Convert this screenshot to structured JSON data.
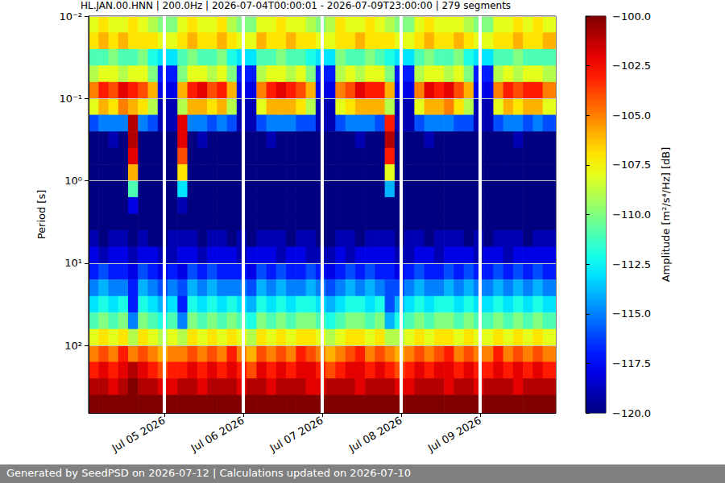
{
  "chart_data": {
    "type": "heatmap",
    "title": "HL.JAN.00.HNN | 200.0Hz | 2026-07-04T00:00:01 - 2026-07-09T23:00:00 | 279 segments",
    "ylabel": "Period [s]",
    "footer": "Generated by SeedPSD on 2026-07-12 | Calculations updated on 2026-07-10",
    "log": "y",
    "grid": true,
    "xlim": [
      "2026-07-04T01:00",
      "2026-07-09T23:00"
    ],
    "xticks": [
      {
        "value": "2026-07-05T00:00",
        "label": "Jul 05 2026"
      },
      {
        "value": "2026-07-06T00:00",
        "label": "Jul 06 2026"
      },
      {
        "value": "2026-07-07T00:00",
        "label": "Jul 07 2026"
      },
      {
        "value": "2026-07-08T00:00",
        "label": "Jul 08 2026"
      },
      {
        "value": "2026-07-09T00:00",
        "label": "Jul 09 2026"
      }
    ],
    "ylim": [
      0.01,
      660
    ],
    "yticks": [
      {
        "value": 0.01,
        "label": "10⁻²"
      },
      {
        "value": 0.1,
        "label": "10⁻¹"
      },
      {
        "value": 1,
        "label": "10⁰"
      },
      {
        "value": 10,
        "label": "10¹"
      },
      {
        "value": 100,
        "label": "10²"
      }
    ],
    "x": [
      "2026-07-04T01:00",
      "2026-07-04T04:00",
      "2026-07-04T07:00",
      "2026-07-04T10:00",
      "2026-07-04T13:00",
      "2026-07-04T16:00",
      "2026-07-04T19:00",
      "2026-07-04T22:00",
      "2026-07-05T01:00",
      "2026-07-05T04:00",
      "2026-07-05T07:00",
      "2026-07-05T10:00",
      "2026-07-05T13:00",
      "2026-07-05T16:00",
      "2026-07-05T19:00",
      "2026-07-05T22:00",
      "2026-07-06T01:00",
      "2026-07-06T04:00",
      "2026-07-06T07:00",
      "2026-07-06T10:00",
      "2026-07-06T13:00",
      "2026-07-06T16:00",
      "2026-07-06T19:00",
      "2026-07-06T22:00",
      "2026-07-07T01:00",
      "2026-07-07T04:00",
      "2026-07-07T07:00",
      "2026-07-07T10:00",
      "2026-07-07T13:00",
      "2026-07-07T16:00",
      "2026-07-07T19:00",
      "2026-07-07T22:00",
      "2026-07-08T01:00",
      "2026-07-08T04:00",
      "2026-07-08T07:00",
      "2026-07-08T10:00",
      "2026-07-08T13:00",
      "2026-07-08T16:00",
      "2026-07-08T19:00",
      "2026-07-08T22:00",
      "2026-07-09T01:00",
      "2026-07-09T04:00",
      "2026-07-09T07:00",
      "2026-07-09T10:00",
      "2026-07-09T13:00",
      "2026-07-09T16:00",
      "2026-07-09T19:00"
    ],
    "period_edges": [
      0.01,
      0.0158,
      0.0251,
      0.0398,
      0.0631,
      0.1,
      0.158,
      0.251,
      0.398,
      0.631,
      1,
      1.58,
      2.51,
      3.98,
      6.31,
      10,
      15.8,
      25.1,
      39.8,
      63.1,
      100,
      158,
      251,
      398,
      660
    ],
    "cells": [
      [
        -108,
        -107,
        -108,
        -108,
        -107,
        -108,
        -109,
        -110,
        -110,
        -108,
        -107,
        -108,
        -108,
        -107,
        -109,
        -110,
        -110,
        -108,
        -108,
        -107,
        -108,
        -108,
        -109,
        -110,
        -109,
        -107,
        -108,
        -108,
        -107,
        -108,
        -109,
        -110,
        -110,
        -108,
        -107,
        -108,
        -108,
        -108,
        -109,
        -110,
        -110,
        -108,
        -108,
        -107,
        -108,
        -107,
        -108
      ],
      [
        -107,
        -106,
        -107,
        -106,
        -107,
        -107,
        -107,
        -108,
        -108,
        -107,
        -106,
        -107,
        -107,
        -106,
        -107,
        -108,
        -108,
        -106,
        -107,
        -107,
        -106,
        -107,
        -107,
        -108,
        -108,
        -107,
        -107,
        -106,
        -107,
        -107,
        -107,
        -108,
        -108,
        -107,
        -106,
        -107,
        -107,
        -106,
        -107,
        -108,
        -108,
        -107,
        -107,
        -106,
        -107,
        -107,
        -106
      ],
      [
        -111,
        -111,
        -110,
        -111,
        -111,
        -110,
        -112,
        -113,
        -113,
        -111,
        -110,
        -111,
        -111,
        -110,
        -112,
        -113,
        -113,
        -111,
        -111,
        -110,
        -111,
        -111,
        -112,
        -113,
        -113,
        -110,
        -111,
        -111,
        -110,
        -111,
        -112,
        -113,
        -113,
        -111,
        -110,
        -111,
        -111,
        -110,
        -112,
        -113,
        -113,
        -111,
        -111,
        -110,
        -111,
        -111,
        -111
      ],
      [
        -109,
        -108,
        -108,
        -109,
        -108,
        -108,
        -110,
        -117,
        -117,
        -110,
        -108,
        -108,
        -109,
        -108,
        -110,
        -117,
        -117,
        -109,
        -108,
        -108,
        -109,
        -108,
        -110,
        -117,
        -117,
        -109,
        -108,
        -109,
        -108,
        -108,
        -110,
        -117,
        -117,
        -109,
        -108,
        -108,
        -109,
        -108,
        -110,
        -117,
        -117,
        -109,
        -108,
        -109,
        -108,
        -108,
        -109
      ],
      [
        -105,
        -103,
        -104,
        -102,
        -103,
        -104,
        -106,
        -118,
        -118,
        -106,
        -103,
        -102,
        -104,
        -103,
        -106,
        -118,
        -118,
        -105,
        -103,
        -102,
        -103,
        -104,
        -106,
        -118,
        -118,
        -105,
        -104,
        -102,
        -103,
        -103,
        -106,
        -118,
        -118,
        -105,
        -102,
        -103,
        -102,
        -104,
        -106,
        -118,
        -118,
        -105,
        -103,
        -104,
        -103,
        -103,
        -105
      ],
      [
        -108,
        -106,
        -107,
        -105,
        -106,
        -107,
        -109,
        -119,
        -119,
        -109,
        -106,
        -106,
        -107,
        -106,
        -109,
        -119,
        -119,
        -108,
        -106,
        -106,
        -106,
        -107,
        -109,
        -119,
        -119,
        -108,
        -107,
        -106,
        -106,
        -106,
        -109,
        -119,
        -119,
        -108,
        -106,
        -106,
        -105,
        -107,
        -109,
        -119,
        -119,
        -108,
        -106,
        -107,
        -106,
        -106,
        -108
      ],
      [
        -116,
        -115,
        -115,
        -115,
        -101,
        -115,
        -116,
        -119,
        -119,
        -102,
        -115,
        -115,
        -116,
        -115,
        -116,
        -119,
        -119,
        -116,
        -115,
        -115,
        -115,
        -116,
        -116,
        -119,
        -119,
        -116,
        -115,
        -115,
        -115,
        -116,
        -103,
        -119,
        -119,
        -116,
        -115,
        -115,
        -115,
        -116,
        -116,
        -119,
        -119,
        -116,
        -115,
        -115,
        -116,
        -115,
        -116
      ],
      [
        -120,
        -120,
        -119,
        -120,
        -101,
        -120,
        -120,
        -120,
        -120,
        -102,
        -120,
        -119,
        -120,
        -120,
        -120,
        -120,
        -120,
        -120,
        -119,
        -120,
        -120,
        -120,
        -120,
        -120,
        -120,
        -120,
        -120,
        -119,
        -120,
        -120,
        -101,
        -120,
        -120,
        -120,
        -119,
        -120,
        -120,
        -120,
        -120,
        -120,
        -120,
        -120,
        -120,
        -119,
        -120,
        -120,
        -120
      ],
      [
        -120,
        -120,
        -120,
        -120,
        -102,
        -120,
        -120,
        -120,
        -120,
        -104,
        -120,
        -120,
        -120,
        -120,
        -120,
        -120,
        -120,
        -120,
        -120,
        -120,
        -120,
        -120,
        -120,
        -120,
        -120,
        -120,
        -120,
        -120,
        -120,
        -120,
        -103,
        -120,
        -120,
        -120,
        -120,
        -120,
        -120,
        -120,
        -120,
        -120,
        -120,
        -120,
        -120,
        -120,
        -120,
        -120,
        -120
      ],
      [
        -120,
        -120,
        -120,
        -120,
        -106,
        -120,
        -120,
        -120,
        -120,
        -107,
        -120,
        -120,
        -120,
        -120,
        -120,
        -120,
        -120,
        -120,
        -120,
        -120,
        -120,
        -120,
        -120,
        -120,
        -120,
        -120,
        -120,
        -120,
        -120,
        -120,
        -108,
        -120,
        -120,
        -120,
        -120,
        -120,
        -120,
        -120,
        -120,
        -120,
        -120,
        -120,
        -120,
        -120,
        -120,
        -120,
        -120
      ],
      [
        -120,
        -120,
        -120,
        -120,
        -111,
        -120,
        -120,
        -120,
        -120,
        -113,
        -120,
        -120,
        -120,
        -120,
        -120,
        -120,
        -120,
        -120,
        -120,
        -120,
        -120,
        -120,
        -120,
        -120,
        -120,
        -120,
        -120,
        -120,
        -120,
        -120,
        -114,
        -120,
        -120,
        -120,
        -120,
        -120,
        -120,
        -120,
        -120,
        -120,
        -120,
        -120,
        -120,
        -120,
        -120,
        -120,
        -120
      ],
      [
        -120,
        -120,
        -120,
        -120,
        -118,
        -120,
        -120,
        -120,
        -120,
        -119,
        -120,
        -120,
        -120,
        -120,
        -120,
        -120,
        -120,
        -120,
        -120,
        -120,
        -120,
        -120,
        -120,
        -120,
        -120,
        -120,
        -120,
        -120,
        -120,
        -120,
        -120,
        -120,
        -120,
        -120,
        -120,
        -120,
        -120,
        -120,
        -120,
        -120,
        -120,
        -120,
        -120,
        -120,
        -120,
        -120,
        -120
      ],
      [
        -120,
        -120,
        -120,
        -120,
        -120,
        -120,
        -120,
        -120,
        -120,
        -120,
        -120,
        -120,
        -120,
        -120,
        -120,
        -120,
        -120,
        -120,
        -120,
        -120,
        -120,
        -120,
        -120,
        -120,
        -120,
        -120,
        -120,
        -120,
        -120,
        -120,
        -120,
        -120,
        -120,
        -120,
        -120,
        -120,
        -120,
        -120,
        -120,
        -120,
        -120,
        -120,
        -120,
        -120,
        -120,
        -120,
        -120
      ],
      [
        -119,
        -120,
        -119,
        -119,
        -120,
        -119,
        -120,
        -120,
        -119,
        -119,
        -119,
        -120,
        -119,
        -119,
        -120,
        -119,
        -120,
        -119,
        -119,
        -119,
        -120,
        -119,
        -119,
        -120,
        -120,
        -119,
        -119,
        -120,
        -119,
        -119,
        -119,
        -120,
        -119,
        -119,
        -120,
        -119,
        -119,
        -119,
        -120,
        -119,
        -120,
        -119,
        -119,
        -119,
        -120,
        -119,
        -119
      ],
      [
        -118,
        -119,
        -118,
        -118,
        -119,
        -118,
        -118,
        -119,
        -119,
        -118,
        -118,
        -119,
        -118,
        -118,
        -118,
        -119,
        -118,
        -118,
        -118,
        -119,
        -118,
        -118,
        -119,
        -119,
        -119,
        -118,
        -119,
        -118,
        -118,
        -118,
        -118,
        -119,
        -119,
        -118,
        -118,
        -119,
        -118,
        -118,
        -118,
        -119,
        -118,
        -118,
        -119,
        -118,
        -118,
        -118,
        -118
      ],
      [
        -117,
        -116,
        -117,
        -117,
        -118,
        -116,
        -117,
        -118,
        -117,
        -118,
        -116,
        -117,
        -116,
        -117,
        -117,
        -117,
        -118,
        -116,
        -117,
        -116,
        -117,
        -117,
        -116,
        -117,
        -118,
        -117,
        -116,
        -117,
        -116,
        -117,
        -117,
        -118,
        -117,
        -116,
        -117,
        -117,
        -116,
        -117,
        -116,
        -117,
        -117,
        -116,
        -117,
        -116,
        -117,
        -116,
        -117
      ],
      [
        -115,
        -114,
        -115,
        -115,
        -117,
        -114,
        -115,
        -116,
        -115,
        -116,
        -114,
        -115,
        -114,
        -115,
        -115,
        -115,
        -116,
        -114,
        -115,
        -114,
        -115,
        -115,
        -114,
        -115,
        -116,
        -115,
        -114,
        -115,
        -114,
        -115,
        -116,
        -116,
        -115,
        -114,
        -115,
        -115,
        -114,
        -115,
        -114,
        -115,
        -115,
        -114,
        -115,
        -114,
        -115,
        -114,
        -115
      ],
      [
        -113,
        -112,
        -113,
        -112,
        -117,
        -112,
        -113,
        -114,
        -113,
        -117,
        -112,
        -113,
        -112,
        -113,
        -112,
        -113,
        -114,
        -112,
        -113,
        -112,
        -113,
        -112,
        -112,
        -113,
        -114,
        -113,
        -112,
        -112,
        -113,
        -112,
        -116,
        -114,
        -113,
        -112,
        -113,
        -112,
        -112,
        -113,
        -112,
        -113,
        -113,
        -112,
        -113,
        -112,
        -113,
        -112,
        -113
      ],
      [
        -111,
        -110,
        -111,
        -110,
        -115,
        -110,
        -111,
        -112,
        -111,
        -115,
        -110,
        -111,
        -110,
        -111,
        -110,
        -111,
        -112,
        -110,
        -111,
        -110,
        -111,
        -110,
        -110,
        -111,
        -112,
        -111,
        -110,
        -110,
        -111,
        -110,
        -114,
        -112,
        -111,
        -110,
        -111,
        -110,
        -110,
        -111,
        -110,
        -111,
        -111,
        -110,
        -111,
        -110,
        -111,
        -110,
        -111
      ],
      [
        -108,
        -107,
        -108,
        -107,
        -109,
        -107,
        -108,
        -109,
        -108,
        -109,
        -107,
        -108,
        -107,
        -108,
        -107,
        -108,
        -109,
        -107,
        -108,
        -107,
        -108,
        -107,
        -107,
        -108,
        -109,
        -108,
        -107,
        -107,
        -108,
        -107,
        -109,
        -109,
        -108,
        -107,
        -108,
        -107,
        -107,
        -108,
        -107,
        -108,
        -108,
        -107,
        -108,
        -107,
        -108,
        -107,
        -108
      ],
      [
        -105,
        -104,
        -105,
        -103,
        -105,
        -104,
        -105,
        -106,
        -105,
        -105,
        -104,
        -105,
        -104,
        -105,
        -103,
        -105,
        -106,
        -104,
        -105,
        -104,
        -105,
        -103,
        -104,
        -105,
        -106,
        -105,
        -104,
        -103,
        -105,
        -104,
        -105,
        -106,
        -105,
        -104,
        -105,
        -104,
        -103,
        -105,
        -104,
        -105,
        -105,
        -103,
        -105,
        -104,
        -105,
        -104,
        -105
      ],
      [
        -103,
        -102,
        -103,
        -102,
        -101,
        -102,
        -103,
        -104,
        -103,
        -103,
        -102,
        -103,
        -102,
        -103,
        -102,
        -103,
        -104,
        -102,
        -103,
        -102,
        -103,
        -102,
        -102,
        -103,
        -104,
        -103,
        -102,
        -102,
        -103,
        -102,
        -103,
        -104,
        -103,
        -102,
        -103,
        -102,
        -102,
        -103,
        -102,
        -103,
        -103,
        -102,
        -103,
        -102,
        -103,
        -102,
        -103
      ],
      [
        -101,
        -101,
        -102,
        -101,
        -100,
        -101,
        -101,
        -102,
        -102,
        -101,
        -101,
        -102,
        -101,
        -101,
        -101,
        -102,
        -101,
        -101,
        -102,
        -101,
        -101,
        -101,
        -102,
        -102,
        -101,
        -101,
        -101,
        -102,
        -101,
        -101,
        -101,
        -102,
        -102,
        -101,
        -101,
        -101,
        -102,
        -101,
        -101,
        -102,
        -101,
        -101,
        -101,
        -102,
        -101,
        -101,
        -101
      ],
      [
        -99,
        -99,
        -99,
        -100,
        -99,
        -99,
        -99,
        -100,
        -99,
        -99,
        -99,
        -99,
        -99,
        -100,
        -99,
        -99,
        -99,
        -99,
        -100,
        -99,
        -99,
        -99,
        -99,
        -99,
        -100,
        -99,
        -99,
        -99,
        -99,
        -99,
        -99,
        -99,
        -99,
        -100,
        -99,
        -99,
        -99,
        -99,
        -99,
        -99,
        -99,
        -99,
        -99,
        -99,
        -100,
        -99,
        -99
      ]
    ],
    "colorbar": {
      "label": "Amplitude [m²/s⁴/Hz] [dB]",
      "range": [
        -120,
        -100
      ],
      "ticks": [
        {
          "value": -120,
          "label": "−120.0"
        },
        {
          "value": -117.5,
          "label": "−117.5"
        },
        {
          "value": -115,
          "label": "−115.0"
        },
        {
          "value": -112.5,
          "label": "−112.5"
        },
        {
          "value": -110,
          "label": "−110.0"
        },
        {
          "value": -107.5,
          "label": "−107.5"
        },
        {
          "value": -105,
          "label": "−105.0"
        },
        {
          "value": -102.5,
          "label": "−102.5"
        },
        {
          "value": -100,
          "label": "−100.0"
        }
      ]
    }
  }
}
